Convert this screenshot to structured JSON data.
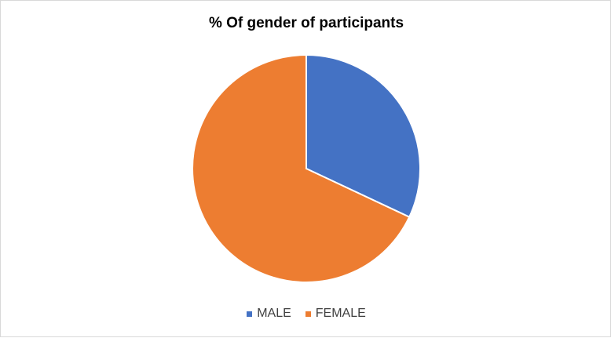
{
  "chart_data": {
    "type": "pie",
    "title": "% Of gender of participants",
    "categories": [
      "MALE",
      "FEMALE"
    ],
    "values": [
      32,
      68
    ],
    "colors": [
      "#4472c4",
      "#ed7d31"
    ],
    "legend_position": "bottom"
  }
}
